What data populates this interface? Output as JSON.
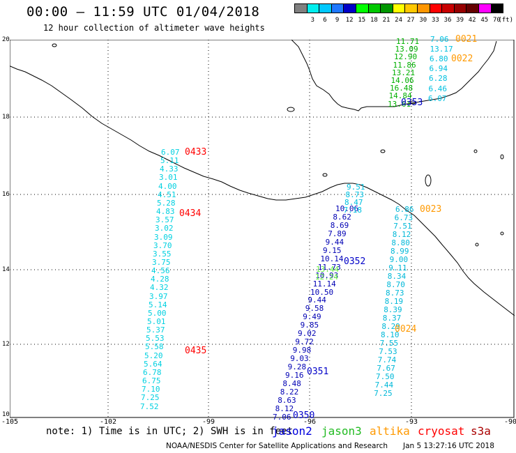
{
  "title": "00:00 – 11:59 UTC 01/04/2018",
  "subtitle": "12 hour collection of altimeter wave heights",
  "legend": {
    "unit": "(ft)",
    "entries": [
      {
        "label": "",
        "color": "#808080"
      },
      {
        "label": "3",
        "color": "#00eeee"
      },
      {
        "label": "6",
        "color": "#00c8ff"
      },
      {
        "label": "9",
        "color": "#1e78ff"
      },
      {
        "label": "12",
        "color": "#0000c8"
      },
      {
        "label": "15",
        "color": "#00ff00"
      },
      {
        "label": "18",
        "color": "#00c800"
      },
      {
        "label": "21",
        "color": "#009600"
      },
      {
        "label": "24",
        "color": "#ffff00"
      },
      {
        "label": "27",
        "color": "#ffc800"
      },
      {
        "label": "30",
        "color": "#ff9600"
      },
      {
        "label": "33",
        "color": "#ff0000"
      },
      {
        "label": "36",
        "color": "#c80000"
      },
      {
        "label": "39",
        "color": "#960000"
      },
      {
        "label": "42",
        "color": "#640000"
      },
      {
        "label": "45",
        "color": "#ff00ff"
      },
      {
        "label": "70",
        "color": "#000000"
      }
    ]
  },
  "axes": {
    "lon_ticks": [
      "-105",
      "-102",
      "-99",
      "-96",
      "-93",
      "-90"
    ],
    "lat_ticks": [
      "20",
      "18",
      "16",
      "14",
      "12",
      "10"
    ]
  },
  "tracks": [
    {
      "id": "t0433",
      "color": "#00d0e0",
      "values": [
        "6.07",
        "5.11",
        "4.33",
        "3.01",
        "4.00",
        "4.51",
        "5.28",
        "4.83",
        "3.57",
        "3.02",
        "3.09",
        "3.70",
        "3.55",
        "3.75",
        "4.56",
        "4.28",
        "4.32",
        "3.97",
        "5.14",
        "5.00",
        "5.01",
        "5.37",
        "5.53",
        "5.58",
        "5.20",
        "5.64",
        "6.78",
        "6.75",
        "7.10",
        "7.25",
        "7.52"
      ]
    },
    {
      "id": "t0350",
      "color": "#0000b4",
      "values": [
        "10.06",
        "8.62",
        "8.69",
        "7.89",
        "9.44",
        "9.15",
        "10.14",
        "11.73",
        "10.93",
        "11.14",
        "10.50",
        "9.44",
        "9.58",
        "9.49",
        "9.85",
        "9.02",
        "9.72",
        "9.98",
        "9.03",
        "9.28",
        "9.16",
        "8.48",
        "8.22",
        "8.63",
        "8.12",
        "7.06"
      ]
    },
    {
      "id": "t0350b",
      "color": "#00c0e0",
      "values": [
        "9.51",
        "8.73",
        "8.47",
        "7.18"
      ]
    },
    {
      "id": "t0352g",
      "color": "#66ee44",
      "values": [
        "13.44",
        "12.24"
      ]
    },
    {
      "id": "t0023",
      "color": "#00b8d8",
      "values": [
        "6.86",
        "6.73",
        "7.51",
        "8.12",
        "8.80",
        "8.99",
        "9.00",
        "9.11",
        "8.34",
        "8.70",
        "8.73",
        "8.19",
        "8.39",
        "8.37",
        "8.29",
        "8.10",
        "7.55",
        "7.53",
        "7.74",
        "7.67",
        "7.50",
        "7.44",
        "7.25"
      ]
    },
    {
      "id": "t0353",
      "color": "#00b000",
      "values": [
        "11.71",
        "13.09",
        "12.90",
        "11.86",
        "13.21",
        "14.06",
        "16.48",
        "14.84",
        "13.61"
      ]
    },
    {
      "id": "t0021",
      "color": "#00c0e0",
      "values": [
        "7.06",
        "13.17",
        "6.80",
        "6.94",
        "6.28",
        "6.46",
        "6.07"
      ]
    }
  ],
  "time_labels": [
    {
      "text": "0433",
      "color": "#ff0000"
    },
    {
      "text": "0434",
      "color": "#ff0000"
    },
    {
      "text": "0435",
      "color": "#ff0000"
    },
    {
      "text": "0352",
      "color": "#0000c8"
    },
    {
      "text": "0351",
      "color": "#0000c8"
    },
    {
      "text": "0350",
      "color": "#0000c8"
    },
    {
      "text": "0353",
      "color": "#0000c8"
    },
    {
      "text": "0021",
      "color": "#ff9900"
    },
    {
      "text": "0022",
      "color": "#ff9900"
    },
    {
      "text": "0023",
      "color": "#ff9900"
    },
    {
      "text": "0024",
      "color": "#ff9900"
    }
  ],
  "note": "note: 1) Time is in UTC; 2) SWH is in feet",
  "satellites": [
    {
      "name": "jason2",
      "color": "#0000dd"
    },
    {
      "name": "jason3",
      "color": "#22bb22"
    },
    {
      "name": "altika",
      "color": "#ff9900"
    },
    {
      "name": "cryosat",
      "color": "#ff0000"
    },
    {
      "name": "s3a",
      "color": "#aa0000"
    }
  ],
  "credit": "NOAA/NESDIS Center for Satellite Applications and Research",
  "stamp": "Jan  5 13:27:16 UTC 2018"
}
